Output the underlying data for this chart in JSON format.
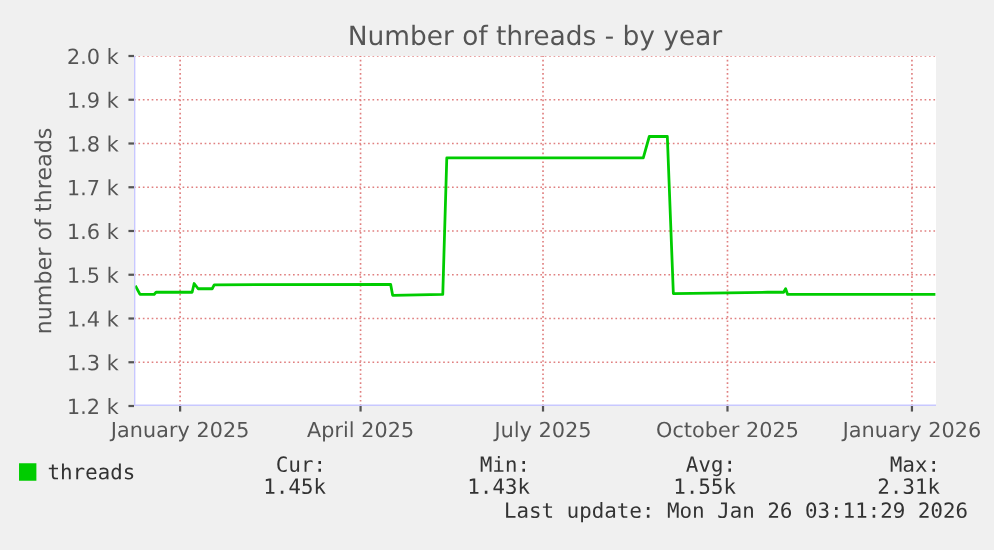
{
  "chart_data": {
    "type": "line",
    "title": "Number of threads - by year",
    "ylabel": "number of threads",
    "x": [
      "2024-12-24",
      "2024-12-26",
      "2025-01-02",
      "2025-01-03",
      "2025-01-21",
      "2025-01-22",
      "2025-01-24",
      "2025-01-31",
      "2025-02-01",
      "2025-04-30",
      "2025-05-01",
      "2025-05-26",
      "2025-05-28",
      "2025-09-03",
      "2025-09-06",
      "2025-09-15",
      "2025-09-18",
      "2025-11-04",
      "2025-11-12",
      "2025-11-13",
      "2025-11-14",
      "2026-01-26"
    ],
    "series": [
      {
        "name": "threads",
        "color": "#00cc00",
        "values": [
          1472,
          1455,
          1455,
          1460,
          1460,
          1480,
          1468,
          1468,
          1477,
          1478,
          1453,
          1455,
          1767,
          1767,
          1816,
          1816,
          1457,
          1460,
          1460,
          1468,
          1455,
          1455
        ]
      }
    ],
    "xlim": [
      "2024-12-23",
      "2026-01-27"
    ],
    "xticks": [
      {
        "value": "2025-01-15",
        "label": "January 2025"
      },
      {
        "value": "2025-04-15",
        "label": "April 2025"
      },
      {
        "value": "2025-07-15",
        "label": "July 2025"
      },
      {
        "value": "2025-10-15",
        "label": "October 2025"
      },
      {
        "value": "2026-01-15",
        "label": "January 2026"
      }
    ],
    "ylim": [
      1200,
      2000
    ],
    "yticks": [
      {
        "value": 1200,
        "label": "1.2 k"
      },
      {
        "value": 1300,
        "label": "1.3 k"
      },
      {
        "value": 1400,
        "label": "1.4 k"
      },
      {
        "value": 1500,
        "label": "1.5 k"
      },
      {
        "value": 1600,
        "label": "1.6 k"
      },
      {
        "value": 1700,
        "label": "1.7 k"
      },
      {
        "value": 1800,
        "label": "1.8 k"
      },
      {
        "value": 1900,
        "label": "1.9 k"
      },
      {
        "value": 2000,
        "label": "2.0 k"
      }
    ],
    "grid": true,
    "legend": "bottom",
    "annotations": [
      "Cur:",
      "Min:",
      "Avg:",
      "Max:",
      "1.45k",
      "1.43k",
      "1.55k",
      "2.31k",
      "Last update: Mon Jan 26 03:11:29 2026"
    ]
  }
}
